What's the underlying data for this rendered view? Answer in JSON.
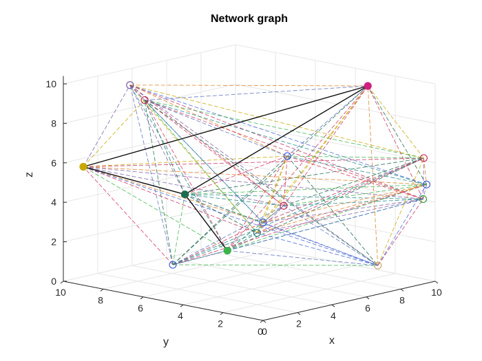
{
  "chart_data": {
    "type": "scatter",
    "subtype": "3d-network-graph",
    "title": "Network graph",
    "xlabel": "x",
    "ylabel": "y",
    "zlabel": "z",
    "xlim": [
      0,
      10
    ],
    "ylim": [
      0,
      10
    ],
    "zlim": [
      0,
      10
    ],
    "xticks": [
      "0",
      "2",
      "4",
      "6",
      "8",
      "10"
    ],
    "yticks": [
      "0",
      "2",
      "4",
      "6",
      "8",
      "10"
    ],
    "zticks": [
      "0",
      "2",
      "4",
      "6",
      "8",
      "10"
    ],
    "grid": true,
    "nodes": [
      {
        "x": 8.6,
        "y": 9.2,
        "z": 0.0,
        "color": "#3cb44b",
        "filled": true
      },
      {
        "x": 5.2,
        "y": 9.0,
        "z": 0.0,
        "color": "#4363d8",
        "filled": false
      },
      {
        "x": 0.0,
        "y": 9.0,
        "z": 6.0,
        "color": "#c8a800",
        "filled": true
      },
      {
        "x": 1.9,
        "y": 8.3,
        "z": 9.9,
        "color": "#7b5ea7",
        "filled": false
      },
      {
        "x": 2.4,
        "y": 8.0,
        "z": 9.1,
        "color": "#c03060",
        "filled": false
      },
      {
        "x": 3.0,
        "y": 6.5,
        "z": 4.5,
        "color": "#1f6b4f",
        "filled": true
      },
      {
        "x": 2.9,
        "y": 2.8,
        "z": 3.3,
        "color": "#1f8a8a",
        "filled": false
      },
      {
        "x": 3.7,
        "y": 3.2,
        "z": 3.6,
        "color": "#4363d8",
        "filled": false
      },
      {
        "x": 4.1,
        "y": 2.5,
        "z": 4.5,
        "color": "#c03060",
        "filled": false
      },
      {
        "x": 6.4,
        "y": 4.3,
        "z": 6.2,
        "color": "#4363d8",
        "filled": false
      },
      {
        "x": 9.8,
        "y": 2.7,
        "z": 0.3,
        "color": "#c8a870",
        "filled": false
      },
      {
        "x": 9.8,
        "y": 0.4,
        "z": 6.2,
        "color": "#d2335a",
        "filled": false
      },
      {
        "x": 9.5,
        "y": 0.0,
        "z": 5.0,
        "color": "#4363d8",
        "filled": false
      },
      {
        "x": 9.3,
        "y": 0.0,
        "z": 4.3,
        "color": "#2ca02c",
        "filled": false
      },
      {
        "x": 9.8,
        "y": 3.2,
        "z": 9.3,
        "color": "#d02080",
        "filled": true
      }
    ],
    "edge_colors": [
      "#4363d8",
      "#d2335a",
      "#c8a800",
      "#1f8a8a",
      "#7b5ea7",
      "#3cb44b",
      "#e08020",
      "#1f6b4f",
      "#c03060",
      "#5a6fc0"
    ],
    "solid_edges": [
      [
        2,
        14
      ],
      [
        5,
        14
      ],
      [
        2,
        5
      ],
      [
        0,
        5
      ]
    ]
  }
}
